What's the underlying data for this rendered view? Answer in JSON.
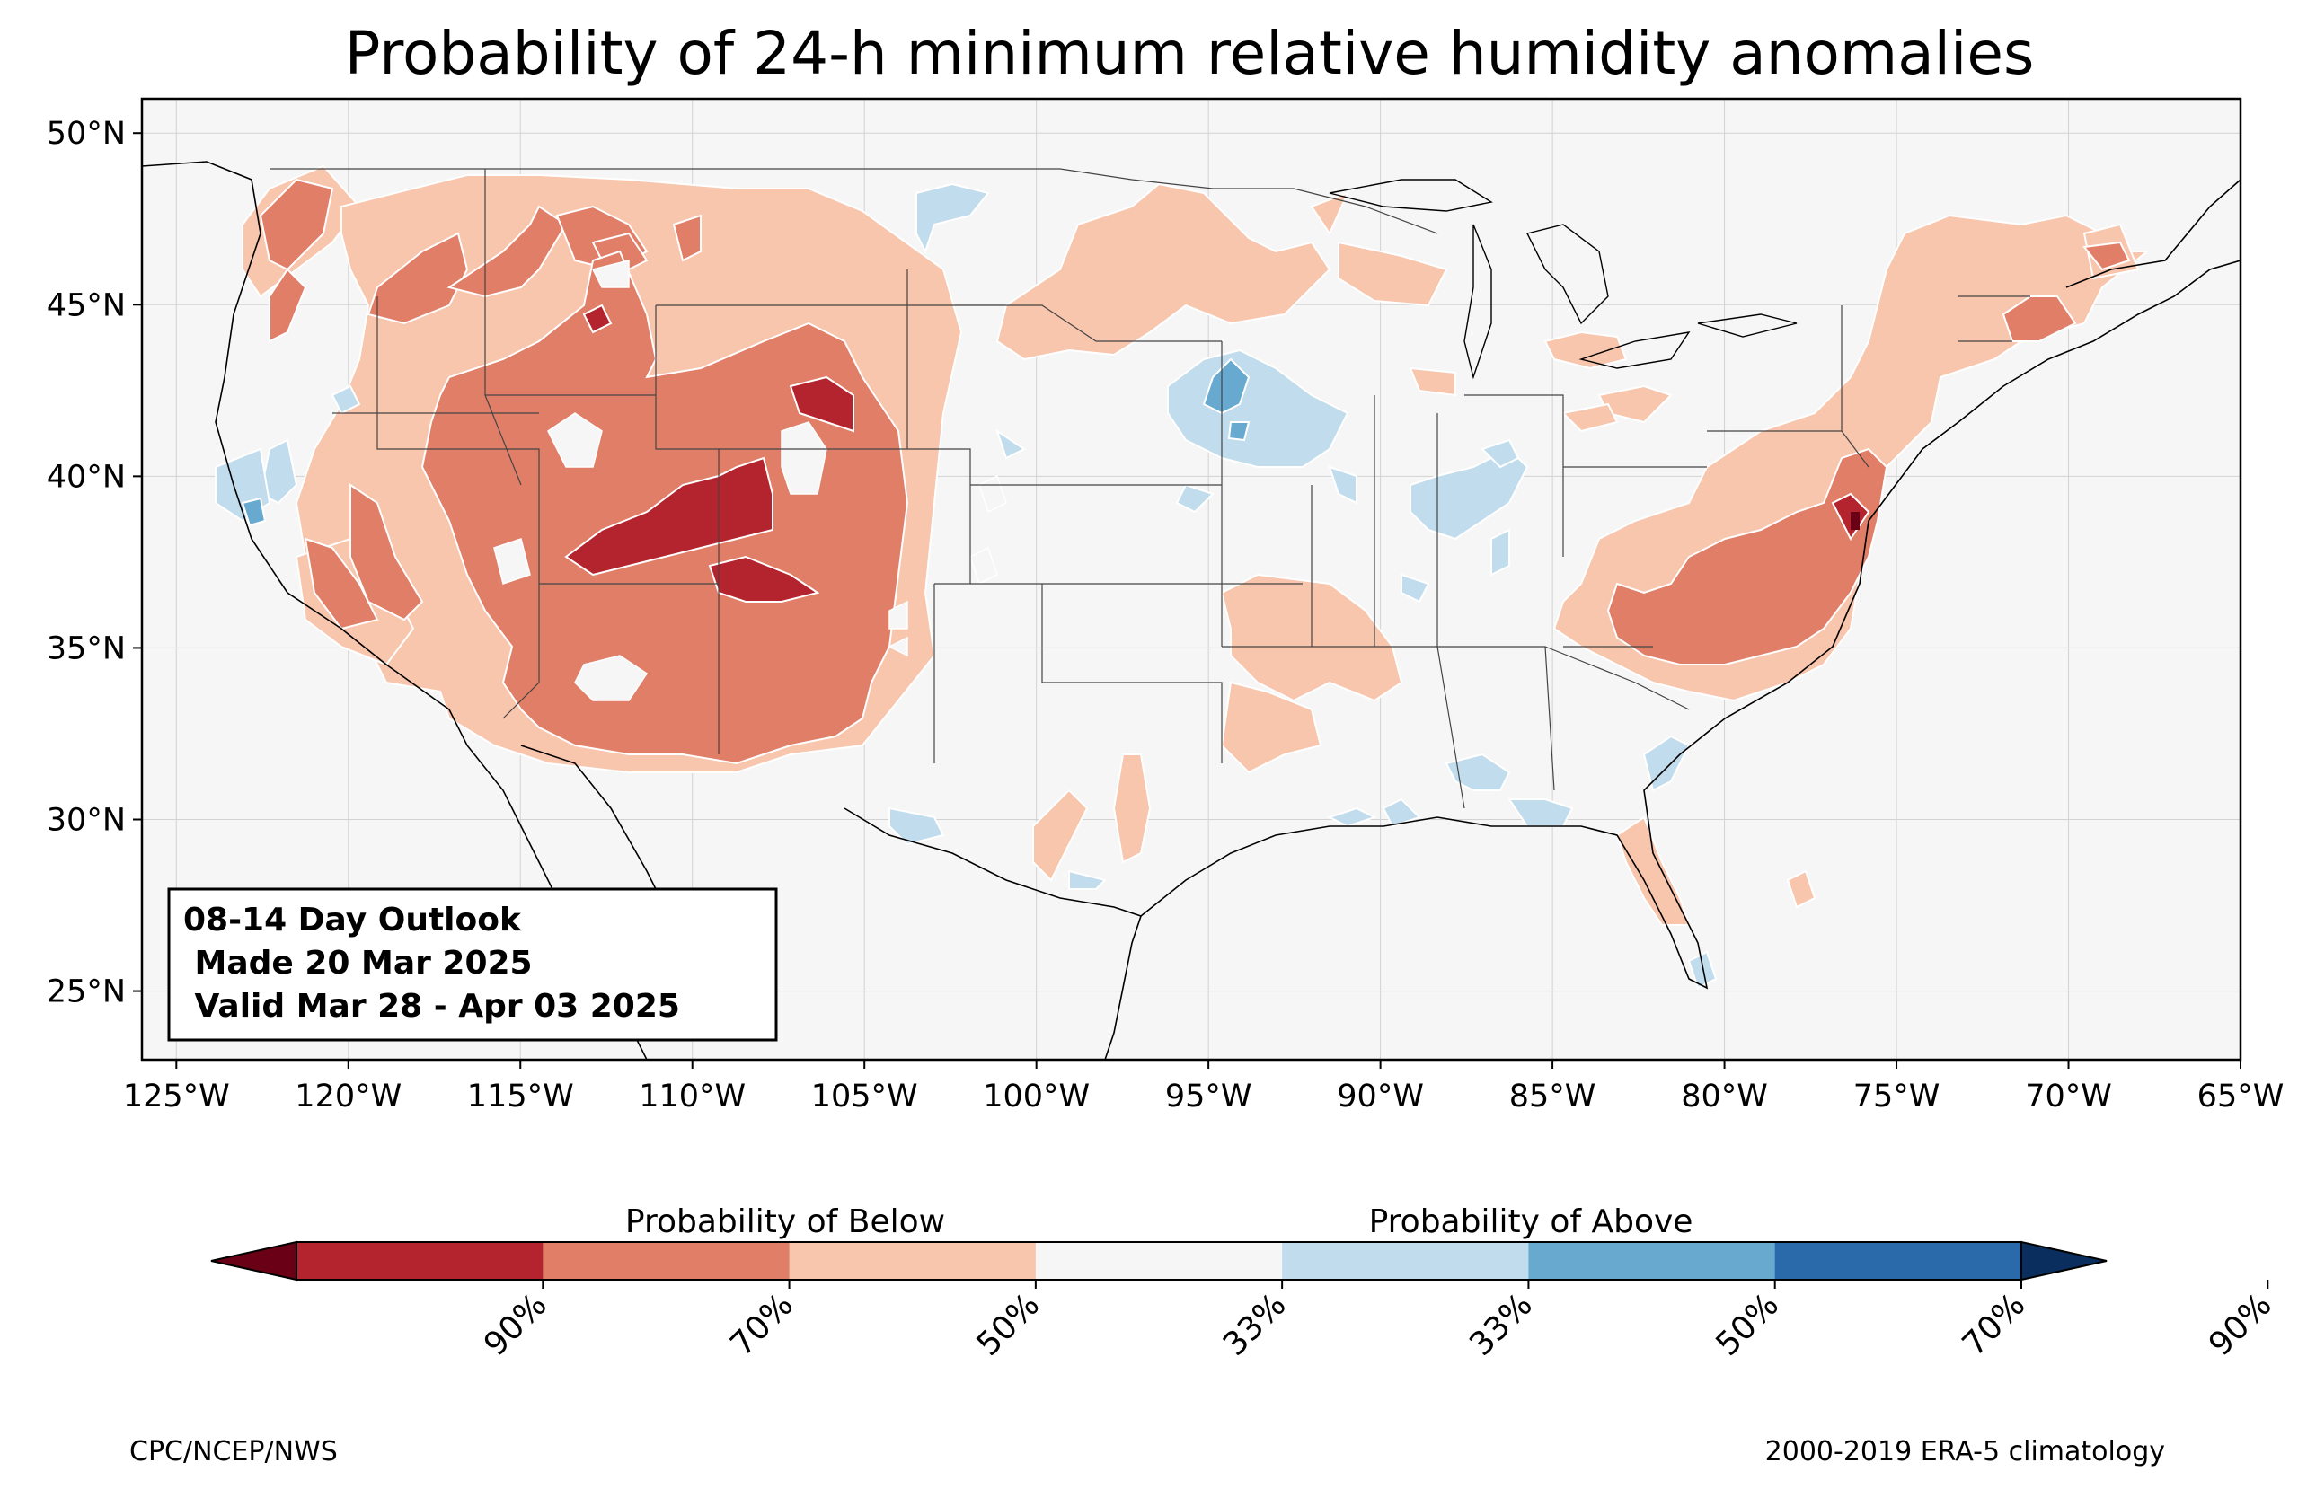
{
  "title": "Probability of 24-h minimum relative humidity anomalies",
  "map": {
    "lat_ticks": [
      "50°N",
      "45°N",
      "40°N",
      "35°N",
      "30°N",
      "25°N"
    ],
    "lon_ticks": [
      "125°W",
      "120°W",
      "115°W",
      "110°W",
      "105°W",
      "100°W",
      "95°W",
      "90°W",
      "85°W",
      "80°W",
      "75°W",
      "70°W",
      "65°W"
    ],
    "lon_range": [
      -126,
      -65
    ],
    "lat_range": [
      23,
      51
    ],
    "grid": true
  },
  "info_box": {
    "line1": "08-14 Day Outlook",
    "line2": " Made 20 Mar 2025",
    "line3": " Valid Mar 28 - Apr 03 2025"
  },
  "colorbar": {
    "below_label": "Probability of Below",
    "above_label": "Probability of Above",
    "tick_labels": [
      "90%",
      "70%",
      "50%",
      "33%",
      "33%",
      "50%",
      "70%",
      "90%"
    ],
    "colors": [
      "#67001f",
      "#b2182b",
      "#d6604d",
      "#f4a582",
      "#fddbc7",
      "#f7f7f7",
      "#d1e5f0",
      "#92c5de",
      "#4393c3",
      "#2166ac",
      "#053061"
    ],
    "bin_colors": [
      "#6a0016",
      "#b4242e",
      "#e07e68",
      "#f8c5ad",
      "#f6f6f6",
      "#c1dcec",
      "#68a9d0",
      "#2a6aab",
      "#0a2f5e"
    ]
  },
  "footer": {
    "left": "CPC/NCEP/NWS",
    "right": "2000-2019 ERA-5 climatology"
  },
  "palette": {
    "below_33": "#f8c5ad",
    "below_50": "#e07e68",
    "below_70": "#b4242e",
    "below_90": "#6a0016",
    "neutral": "#f6f6f6",
    "above_33": "#c1dcec",
    "above_50": "#68a9d0"
  }
}
